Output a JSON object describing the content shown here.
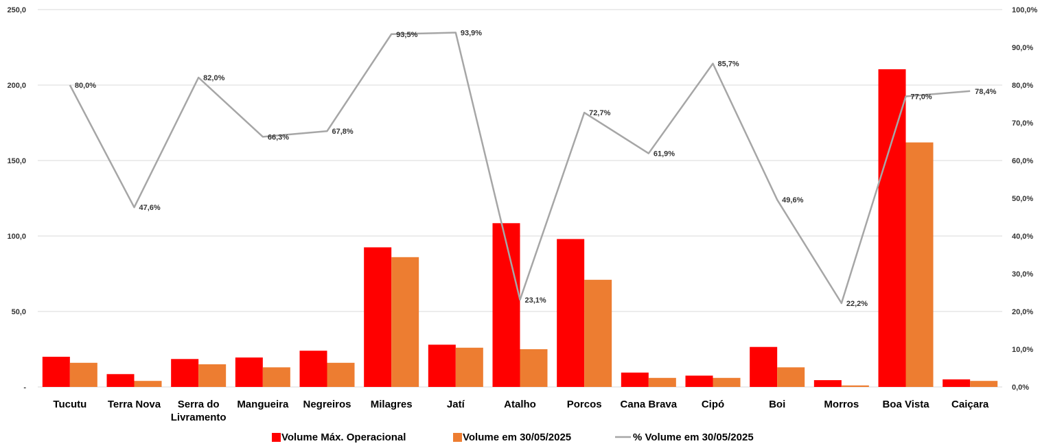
{
  "chart_data": {
    "type": "bar",
    "categories": [
      [
        "Tucutu"
      ],
      [
        "Terra Nova"
      ],
      [
        "Serra do",
        "Livramento"
      ],
      [
        "Mangueira"
      ],
      [
        "Negreiros"
      ],
      [
        "Milagres"
      ],
      [
        "Jatí"
      ],
      [
        "Atalho"
      ],
      [
        "Porcos"
      ],
      [
        "Cana Brava"
      ],
      [
        "Cipó"
      ],
      [
        "Boi"
      ],
      [
        "Morros"
      ],
      [
        "Boa Vista"
      ],
      [
        "Caiçara"
      ]
    ],
    "series": [
      {
        "name": "Volume Máx. Operacional",
        "type": "bar",
        "axis": "left",
        "color": "#ff0000",
        "values": [
          20.0,
          8.5,
          18.5,
          19.5,
          24.0,
          92.5,
          28.0,
          108.5,
          98.0,
          9.5,
          7.5,
          26.5,
          4.5,
          210.5,
          5.0
        ]
      },
      {
        "name": "Volume em 30/05/2025",
        "type": "bar",
        "axis": "left",
        "color": "#ed7d31",
        "values": [
          16.0,
          4.0,
          15.0,
          13.0,
          16.0,
          86.0,
          26.0,
          25.0,
          71.0,
          6.0,
          6.0,
          13.0,
          1.0,
          162.0,
          4.0
        ]
      },
      {
        "name": "% Volume em 30/05/2025",
        "type": "line",
        "axis": "right",
        "color": "#a6a6a6",
        "values": [
          80.0,
          47.6,
          82.0,
          66.3,
          67.8,
          93.5,
          93.9,
          23.1,
          72.7,
          61.9,
          85.7,
          49.6,
          22.2,
          77.0,
          78.4
        ],
        "labels": [
          "80,0%",
          "47,6%",
          "82,0%",
          "66,3%",
          "67,8%",
          "93,5%",
          "93,9%",
          "23,1%",
          "72,7%",
          "61,9%",
          "85,7%",
          "49,6%",
          "22,2%",
          "77,0%",
          "78,4%"
        ]
      }
    ],
    "y_left": {
      "ylim": [
        0,
        250
      ],
      "ticks": [
        0,
        50,
        100,
        150,
        200,
        250
      ],
      "tick_labels": [
        "-",
        "50,0",
        "100,0",
        "150,0",
        "200,0",
        "250,0"
      ]
    },
    "y_right": {
      "ylim": [
        0,
        100
      ],
      "ticks": [
        0,
        10,
        20,
        30,
        40,
        50,
        60,
        70,
        80,
        90,
        100
      ],
      "tick_labels": [
        "0,0%",
        "10,0%",
        "20,0%",
        "30,0%",
        "40,0%",
        "50,0%",
        "60,0%",
        "70,0%",
        "80,0%",
        "90,0%",
        "100,0%"
      ]
    },
    "grid": true,
    "legend_position": "bottom"
  }
}
